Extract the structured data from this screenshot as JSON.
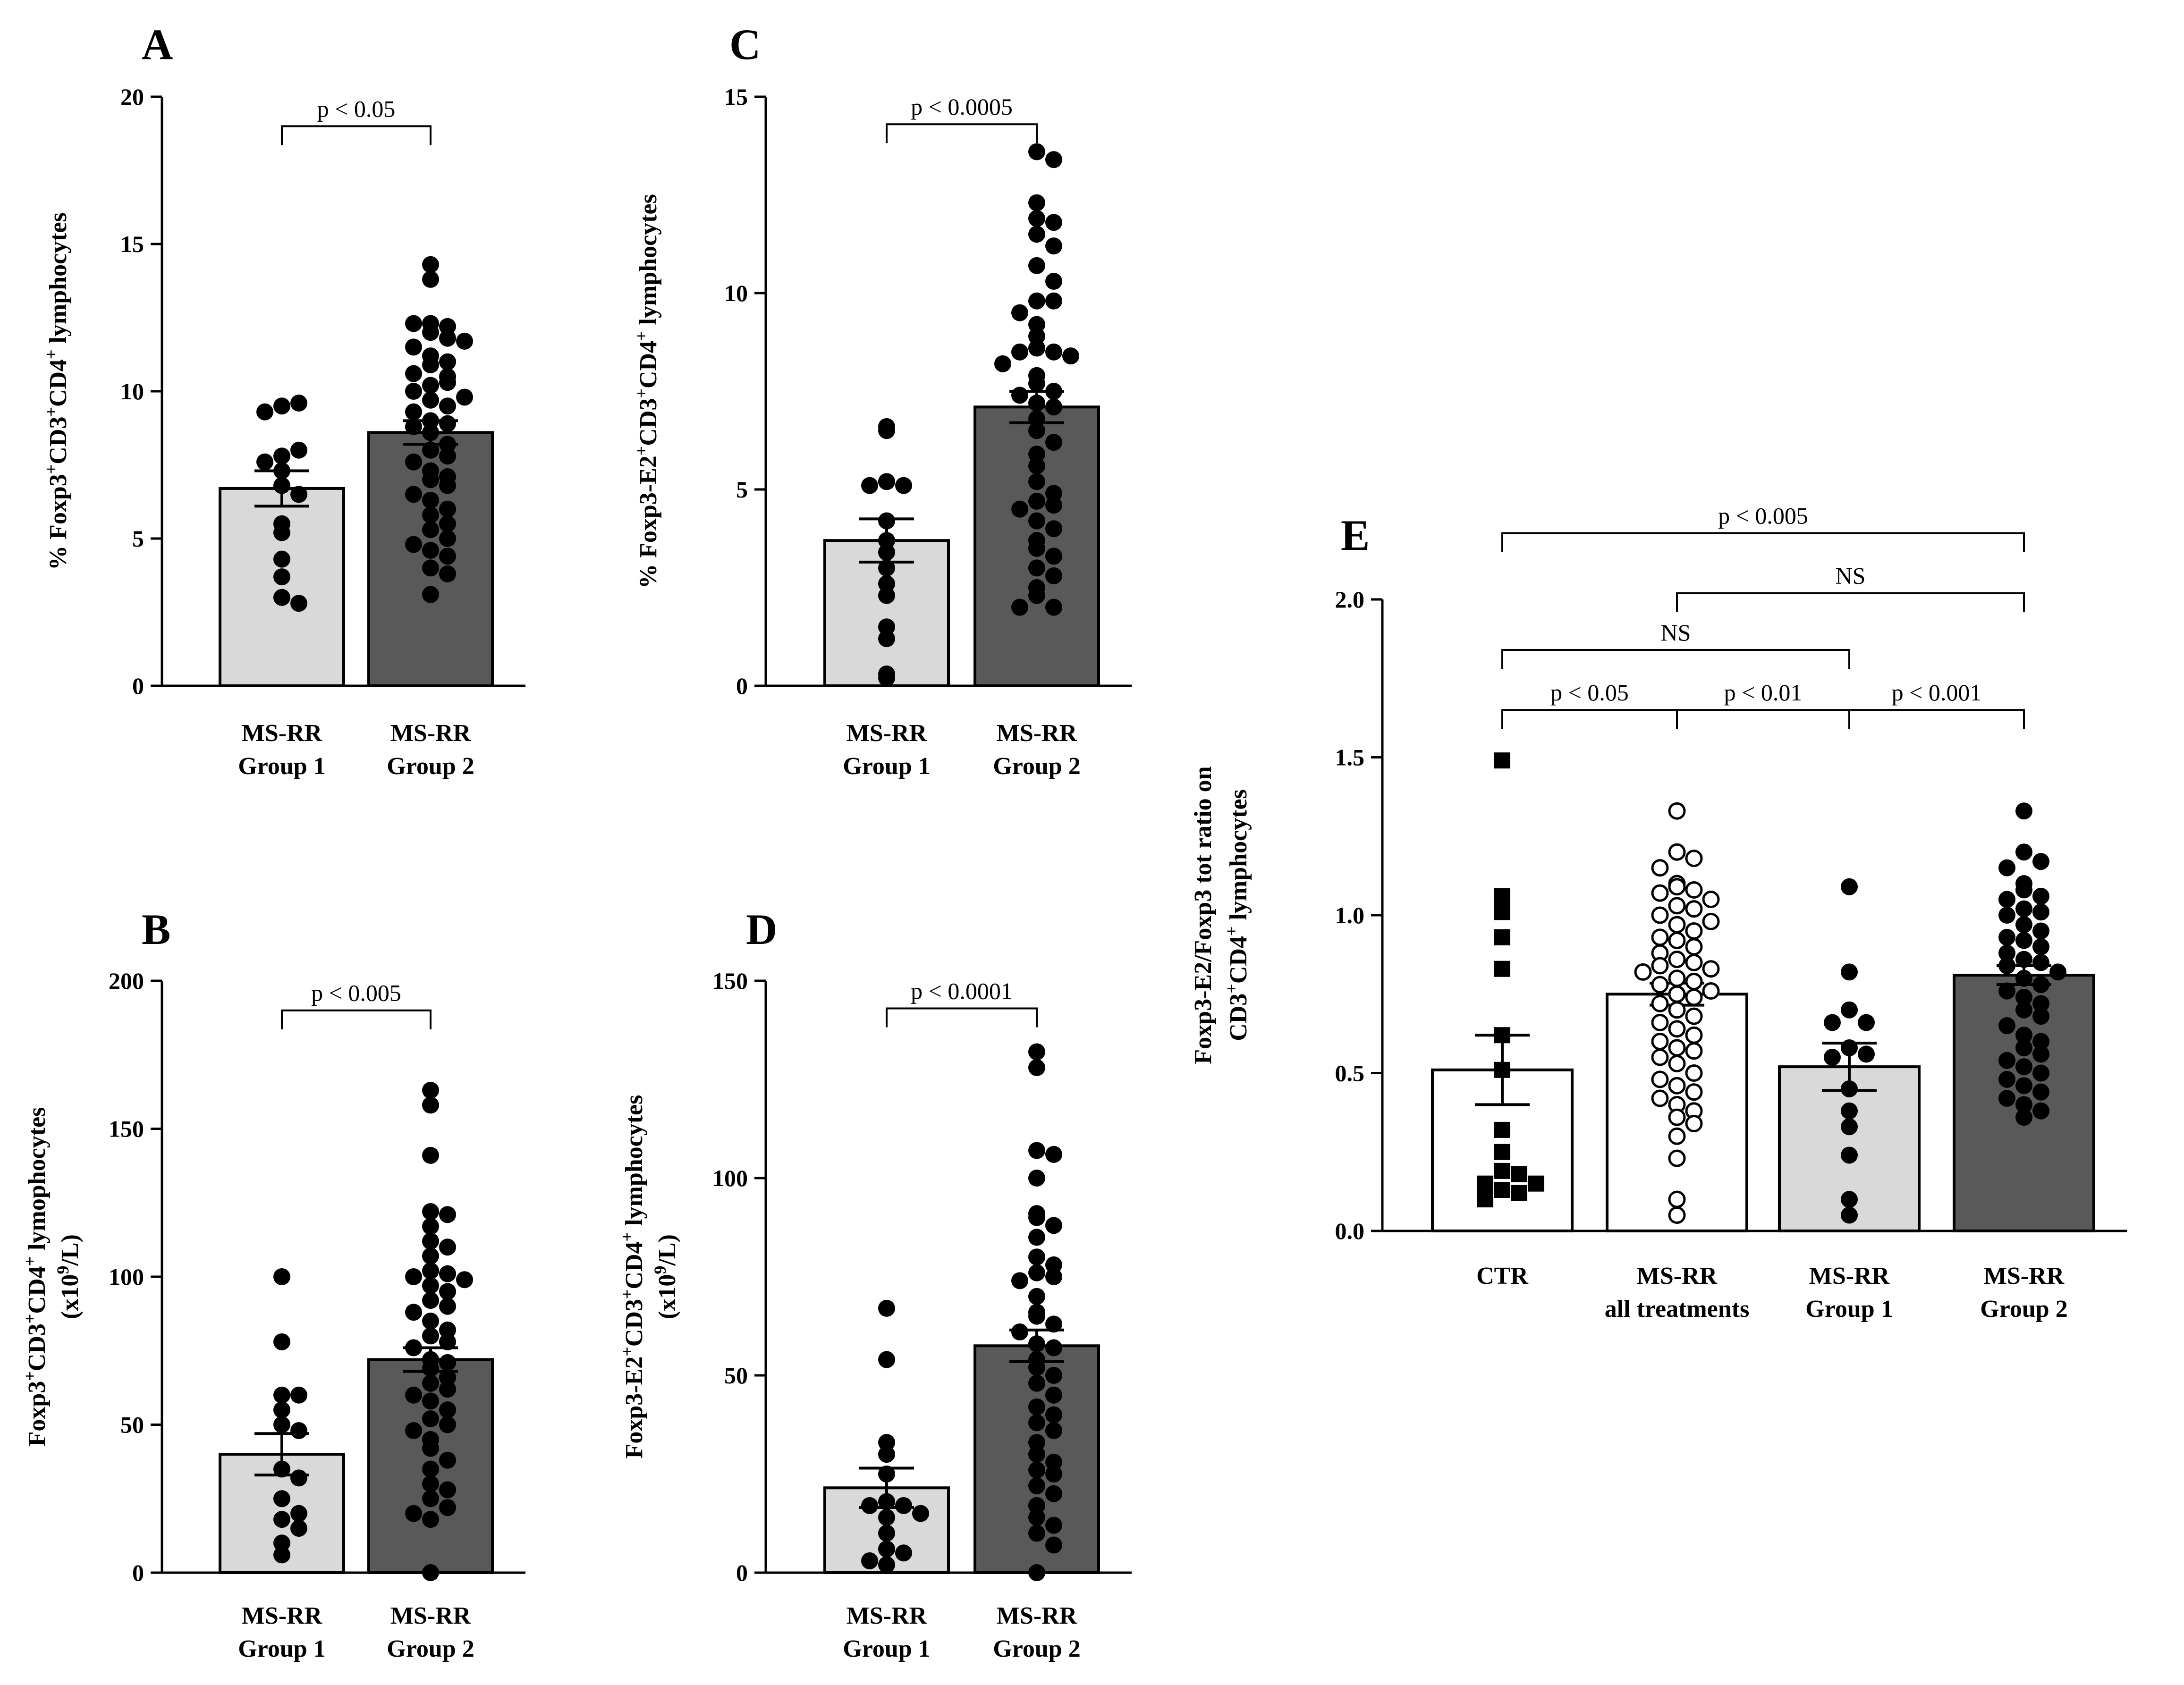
{
  "colors": {
    "group1_bar": "#d9d9d9",
    "group2_bar": "#595959",
    "ctr_bar": "#ffffff",
    "all_bar": "#ffffff",
    "point": "#000000"
  },
  "chart_data": [
    {
      "id": "A",
      "type": "bar",
      "panel": "A",
      "ylabel": "% Foxp3+CD3+CD4+ lymphocytes",
      "ylabel_parts": [
        {
          "t": "% Foxp3"
        },
        {
          "t": "+",
          "sup": true
        },
        {
          "t": "CD3"
        },
        {
          "t": "+",
          "sup": true
        },
        {
          "t": "CD4"
        },
        {
          "t": "+",
          "sup": true
        },
        {
          "t": " lymphocytes"
        }
      ],
      "ylim": [
        0,
        20
      ],
      "yticks": [
        0,
        5,
        10,
        15,
        20
      ],
      "ytick_labels": [
        "0",
        "5",
        "10",
        "15",
        "20"
      ],
      "categories": [
        [
          "MS-RR",
          "Group 1"
        ],
        [
          "MS-RR",
          "Group 2"
        ]
      ],
      "means": [
        6.7,
        8.6
      ],
      "sem": [
        0.6,
        0.4
      ],
      "marker": [
        "circle",
        "circle"
      ],
      "fill": [
        "group1_bar",
        "group2_bar"
      ],
      "points": [
        [
          9.5,
          9.6,
          9.3,
          7.8,
          8.0,
          7.6,
          7.3,
          6.8,
          6.5,
          5.5,
          5.2,
          4.3,
          3.7,
          3.0,
          2.8
        ],
        [
          14.3,
          13.8,
          12.3,
          12.2,
          12.0,
          12.3,
          11.8,
          11.5,
          11.7,
          11.2,
          11.0,
          10.9,
          10.5,
          10.6,
          10.2,
          10.3,
          10.0,
          9.8,
          9.7,
          9.5,
          9.3,
          9.0,
          8.9,
          8.8,
          8.6,
          8.2,
          8.0,
          7.8,
          7.6,
          7.3,
          7.1,
          7.0,
          6.8,
          6.5,
          6.3,
          6.0,
          5.8,
          5.5,
          5.3,
          5.0,
          4.8,
          4.6,
          4.4,
          4.0,
          3.8,
          3.1
        ]
      ],
      "sig": [
        {
          "from": 0,
          "to": 1,
          "label": "p < 0.05",
          "level": 19.0
        }
      ]
    },
    {
      "id": "B",
      "type": "bar",
      "panel": "B",
      "ylabel": "Foxp3+CD3+CD4+ lymophocytes (x10^9/L)",
      "ylabel_parts": [
        {
          "t": "Foxp3"
        },
        {
          "t": "+",
          "sup": true
        },
        {
          "t": "CD3"
        },
        {
          "t": "+",
          "sup": true
        },
        {
          "t": "CD4"
        },
        {
          "t": "+",
          "sup": true
        },
        {
          "t": " lymophocytes"
        }
      ],
      "ylabel_parts2": [
        {
          "t": "(x10"
        },
        {
          "t": "9",
          "sup": true
        },
        {
          "t": "/L)"
        }
      ],
      "ylim": [
        0,
        200
      ],
      "yticks": [
        0,
        50,
        100,
        150,
        200
      ],
      "ytick_labels": [
        "0",
        "50",
        "100",
        "150",
        "200"
      ],
      "categories": [
        [
          "MS-RR",
          "Group 1"
        ],
        [
          "MS-RR",
          "Group 2"
        ]
      ],
      "means": [
        40,
        72
      ],
      "sem": [
        7,
        4
      ],
      "marker": [
        "circle",
        "circle"
      ],
      "fill": [
        "group1_bar",
        "group2_bar"
      ],
      "points": [
        [
          100,
          78,
          60,
          60,
          55,
          50,
          48,
          35,
          32,
          25,
          20,
          18,
          15,
          10,
          6
        ],
        [
          163,
          158,
          141,
          122,
          121,
          117,
          112,
          110,
          107,
          102,
          101,
          100,
          99,
          97,
          95,
          92,
          90,
          88,
          85,
          82,
          80,
          78,
          76,
          72,
          71,
          69,
          66,
          64,
          62,
          60,
          58,
          55,
          52,
          50,
          48,
          45,
          42,
          38,
          35,
          30,
          28,
          25,
          22,
          20,
          18,
          0
        ]
      ],
      "sig": [
        {
          "from": 0,
          "to": 1,
          "label": "p < 0.005",
          "level": 190
        }
      ]
    },
    {
      "id": "C",
      "type": "bar",
      "panel": "C",
      "ylabel": "% Foxp3-E2+CD3+CD4+ lymphocytes",
      "ylabel_parts": [
        {
          "t": "% Foxp3-E2"
        },
        {
          "t": "+",
          "sup": true
        },
        {
          "t": "CD3"
        },
        {
          "t": "+",
          "sup": true
        },
        {
          "t": "CD4"
        },
        {
          "t": "+",
          "sup": true
        },
        {
          "t": " lymphocytes"
        }
      ],
      "ylim": [
        0,
        15
      ],
      "yticks": [
        0,
        5,
        10,
        15
      ],
      "ytick_labels": [
        "0",
        "5",
        "10",
        "15"
      ],
      "categories": [
        [
          "MS-RR",
          "Group 1"
        ],
        [
          "MS-RR",
          "Group 2"
        ]
      ],
      "means": [
        3.7,
        7.1
      ],
      "sem": [
        0.55,
        0.4
      ],
      "marker": [
        "circle",
        "circle"
      ],
      "fill": [
        "group1_bar",
        "group2_bar"
      ],
      "points": [
        [
          6.6,
          6.5,
          5.2,
          5.1,
          5.1,
          4.2,
          3.7,
          3.4,
          3.0,
          2.6,
          2.3,
          1.5,
          1.2,
          0.3,
          0.2
        ],
        [
          13.6,
          13.4,
          12.3,
          11.9,
          11.8,
          11.5,
          11.2,
          10.7,
          10.3,
          9.8,
          9.8,
          9.5,
          9.2,
          8.9,
          8.6,
          8.5,
          8.5,
          8.4,
          8.2,
          7.9,
          7.7,
          7.5,
          7.4,
          7.2,
          7.1,
          6.8,
          6.5,
          6.2,
          5.9,
          5.6,
          5.2,
          4.9,
          4.7,
          4.6,
          4.5,
          4.2,
          4.0,
          3.7,
          3.5,
          3.3,
          3.0,
          2.8,
          2.5,
          2.3,
          2.0,
          2.0
        ]
      ],
      "sig": [
        {
          "from": 0,
          "to": 1,
          "label": "p < 0.0005",
          "level": 14.3
        }
      ]
    },
    {
      "id": "D",
      "type": "bar",
      "panel": "D",
      "ylabel": "Foxp3-E2+CD3+CD4+ lymphocytes (x10^9/L)",
      "ylabel_parts": [
        {
          "t": "Foxp3-E2"
        },
        {
          "t": "+",
          "sup": true
        },
        {
          "t": "CD3"
        },
        {
          "t": "+",
          "sup": true
        },
        {
          "t": "CD4"
        },
        {
          "t": "+",
          "sup": true
        },
        {
          "t": " lymphocytes"
        }
      ],
      "ylabel_parts2": [
        {
          "t": "(x10"
        },
        {
          "t": "9",
          "sup": true
        },
        {
          "t": "/L)"
        }
      ],
      "ylim": [
        0,
        150
      ],
      "yticks": [
        0,
        50,
        100,
        150
      ],
      "ytick_labels": [
        "0",
        "50",
        "100",
        "150"
      ],
      "categories": [
        [
          "MS-RR",
          "Group 1"
        ],
        [
          "MS-RR",
          "Group 2"
        ]
      ],
      "means": [
        21.5,
        57.5
      ],
      "sem": [
        5,
        4
      ],
      "marker": [
        "circle",
        "circle"
      ],
      "fill": [
        "group1_bar",
        "group2_bar"
      ],
      "points": [
        [
          67,
          54,
          33,
          30,
          25,
          18,
          17,
          17,
          15,
          14,
          10,
          6,
          5,
          3,
          2
        ],
        [
          132,
          128,
          107,
          106,
          100,
          91,
          90,
          88,
          85,
          80,
          78,
          76,
          75,
          74,
          70,
          66,
          65,
          63,
          61,
          58,
          57,
          54,
          52,
          50,
          48,
          45,
          42,
          40,
          38,
          36,
          33,
          30,
          28,
          26,
          25,
          22,
          20,
          17,
          14,
          12,
          10,
          7,
          0
        ]
      ],
      "sig": [
        {
          "from": 0,
          "to": 1,
          "label": "p < 0.0001",
          "level": 143
        }
      ]
    },
    {
      "id": "E",
      "type": "bar",
      "panel": "E",
      "ylabel": "Foxp3-E2/Foxp3 tot ratio on CD3+CD4+ lymphocytes",
      "ylabel_parts": [
        {
          "t": "Foxp3-E2/Foxp3 tot ratio  on"
        }
      ],
      "ylabel_parts2": [
        {
          "t": "CD3"
        },
        {
          "t": "+",
          "sup": true
        },
        {
          "t": "CD4"
        },
        {
          "t": "+",
          "sup": true
        },
        {
          "t": " lymphocytes"
        }
      ],
      "ylim": [
        0,
        2.0
      ],
      "yticks": [
        0,
        0.5,
        1.0,
        1.5,
        2.0
      ],
      "ytick_labels": [
        "0.0",
        "0.5",
        "1.0",
        "1.5",
        "2.0"
      ],
      "categories": [
        [
          "CTR"
        ],
        [
          "MS-RR",
          "all treatments"
        ],
        [
          "MS-RR",
          "Group 1"
        ],
        [
          "MS-RR",
          "Group 2"
        ]
      ],
      "means": [
        0.51,
        0.75,
        0.52,
        0.81
      ],
      "sem": [
        0.11,
        0.035,
        0.075,
        0.03
      ],
      "marker": [
        "square",
        "open-circle",
        "circle",
        "circle"
      ],
      "fill": [
        "ctr_bar",
        "all_bar",
        "group1_bar",
        "group2_bar"
      ],
      "points": [
        [
          1.49,
          1.06,
          1.01,
          0.93,
          0.83,
          0.62,
          0.51,
          0.32,
          0.25,
          0.19,
          0.18,
          0.15,
          0.15,
          0.13,
          0.12,
          0.1
        ],
        [
          1.33,
          1.2,
          1.18,
          1.15,
          1.1,
          1.09,
          1.08,
          1.07,
          1.05,
          1.03,
          1.02,
          1.0,
          0.98,
          0.97,
          0.95,
          0.93,
          0.92,
          0.9,
          0.88,
          0.86,
          0.85,
          0.84,
          0.83,
          0.82,
          0.8,
          0.79,
          0.78,
          0.76,
          0.75,
          0.74,
          0.72,
          0.7,
          0.68,
          0.66,
          0.64,
          0.62,
          0.6,
          0.58,
          0.57,
          0.55,
          0.53,
          0.5,
          0.48,
          0.46,
          0.44,
          0.42,
          0.4,
          0.38,
          0.36,
          0.34,
          0.3,
          0.23,
          0.1,
          0.05
        ],
        [
          1.09,
          0.82,
          0.7,
          0.66,
          0.66,
          0.58,
          0.56,
          0.55,
          0.45,
          0.38,
          0.33,
          0.24,
          0.1,
          0.05
        ],
        [
          1.33,
          1.2,
          1.17,
          1.15,
          1.1,
          1.08,
          1.06,
          1.05,
          1.02,
          1.01,
          1.0,
          0.97,
          0.95,
          0.93,
          0.92,
          0.9,
          0.88,
          0.86,
          0.85,
          0.84,
          0.82,
          0.8,
          0.78,
          0.76,
          0.74,
          0.72,
          0.7,
          0.68,
          0.65,
          0.62,
          0.6,
          0.58,
          0.56,
          0.54,
          0.52,
          0.5,
          0.48,
          0.46,
          0.44,
          0.42,
          0.4,
          0.38,
          0.36
        ]
      ],
      "sig": [
        {
          "from": 0,
          "to": 1,
          "label": "p < 0.05",
          "level": 1.65
        },
        {
          "from": 1,
          "to": 2,
          "label": "p < 0.01",
          "level": 1.65
        },
        {
          "from": 2,
          "to": 3,
          "label": "p < 0.001",
          "level": 1.65
        },
        {
          "from": 0,
          "to": 2,
          "label": "NS",
          "level": 1.84
        },
        {
          "from": 1,
          "to": 3,
          "label": "NS",
          "level": 2.02
        },
        {
          "from": 0,
          "to": 3,
          "label": "p < 0.005",
          "level": 2.21
        }
      ]
    }
  ]
}
